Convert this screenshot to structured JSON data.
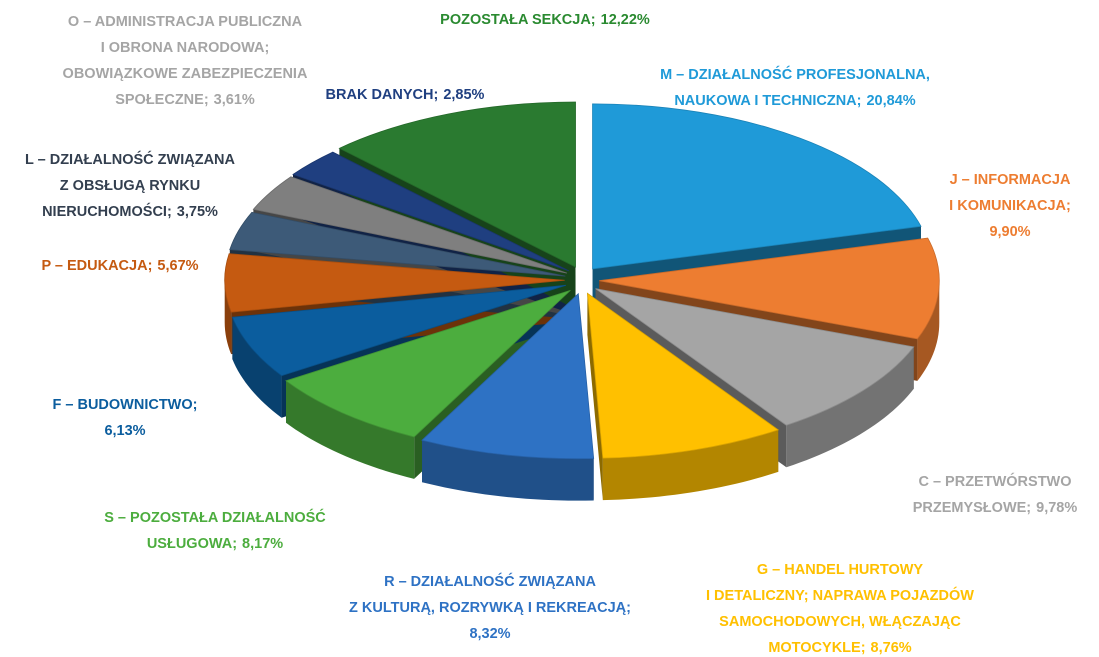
{
  "chart_data": {
    "type": "pie3d",
    "categories": [
      [
        "M – DZIAŁALNOŚĆ PROFESJONALNA,",
        "NAUKOWA I TECHNICZNA;"
      ],
      [
        "J – INFORMACJA",
        "I KOMUNIKACJA;"
      ],
      [
        "C – PRZETWÓRSTWO",
        "PRZEMYSŁOWE;"
      ],
      [
        "G – HANDEL HURTOWY",
        "I DETALICZNY; NAPRAWA POJAZDÓW",
        "SAMOCHODOWYCH, WŁĄCZAJĄC",
        "MOTOCYKLE;"
      ],
      [
        "R – DZIAŁALNOŚĆ ZWIĄZANA",
        "Z KULTURĄ, ROZRYWKĄ I REKREACJĄ;"
      ],
      [
        "S – POZOSTAŁA DZIAŁALNOŚĆ",
        "USŁUGOWA;"
      ],
      [
        "F – BUDOWNICTWO;"
      ],
      [
        "P – EDUKACJA;"
      ],
      [
        "L – DZIAŁALNOŚĆ ZWIĄZANA",
        "Z OBSŁUGĄ RYNKU",
        "NIERUCHOMOŚCI;"
      ],
      [
        "O – ADMINISTRACJA PUBLICZNA",
        "I OBRONA NARODOWA;",
        "OBOWIĄZKOWE ZABEZPIECZENIA",
        "SPOŁECZNE;"
      ],
      [
        "BRAK DANYCH;"
      ],
      [
        "POZOSTAŁA SEKCJA;"
      ]
    ],
    "values": [
      20.84,
      9.9,
      9.78,
      8.76,
      8.32,
      8.17,
      6.13,
      5.67,
      3.75,
      3.61,
      2.85,
      12.22
    ],
    "value_labels": [
      "20,84%",
      "9,90%",
      "9,78%",
      "8,76%",
      "8,32%",
      "8,17%",
      "6,13%",
      "5,67%",
      "3,75%",
      "3,61%",
      "2,85%",
      "12,22%"
    ],
    "colors": [
      "#1f9ad8",
      "#ed7d31",
      "#a5a5a5",
      "#ffc000",
      "#2e72c4",
      "#4cad3e",
      "#0b5d9e",
      "#c55a11",
      "#3d5a78",
      "#7f7f7f",
      "#1f3f80",
      "#2a7a30"
    ],
    "label_colors": [
      "#1f9ad8",
      "#ed7d31",
      "#a5a5a5",
      "#ffc000",
      "#2e72c4",
      "#4cad3e",
      "#0b5d9e",
      "#c55a11",
      "#333f4f",
      "#a5a5a5",
      "#1f3f80",
      "#2a8a30"
    ]
  }
}
